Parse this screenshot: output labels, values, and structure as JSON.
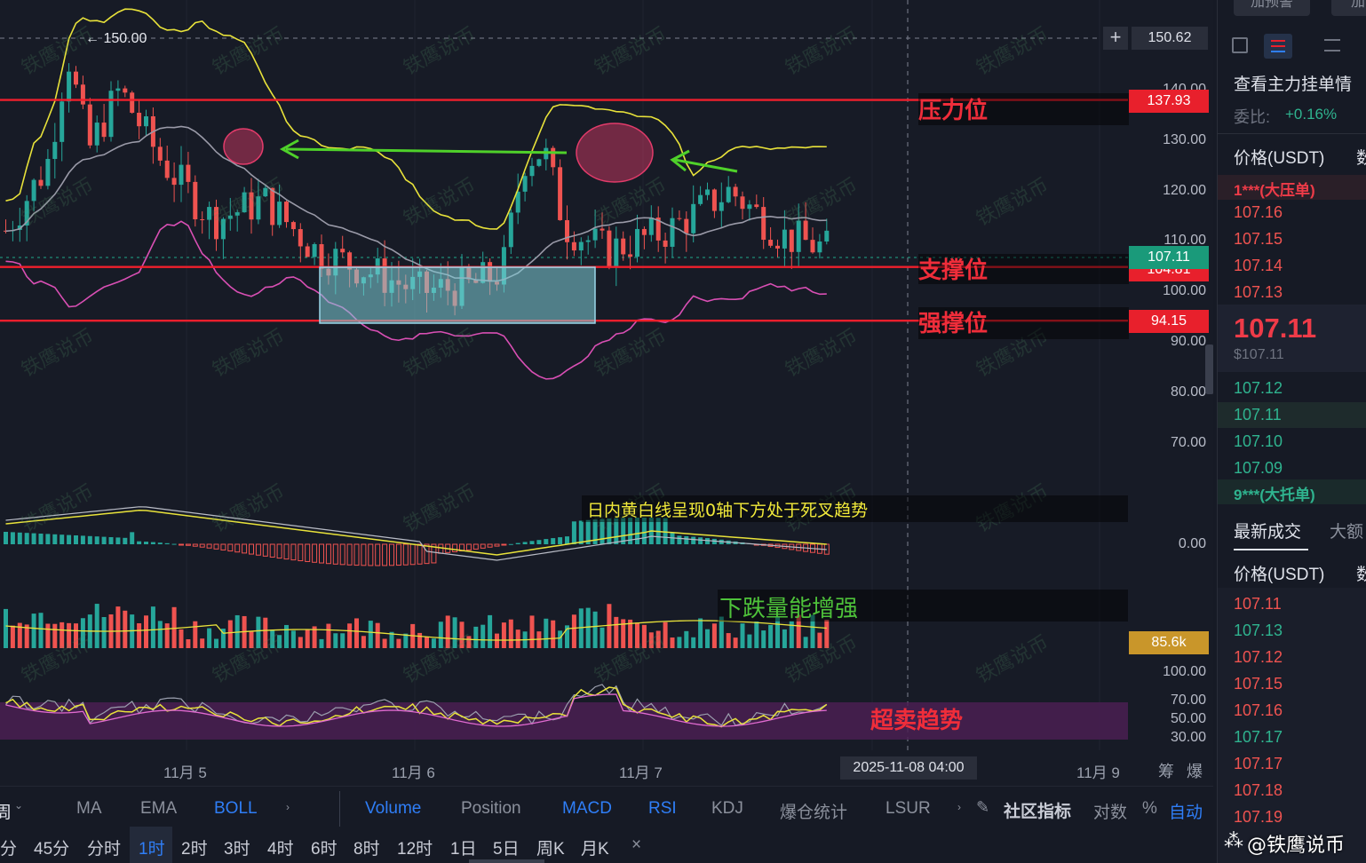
{
  "price_axis": {
    "ticks": [
      "140.00",
      "130.00",
      "120.00",
      "110.00",
      "100.00",
      "90.00",
      "80.00",
      "70.00"
    ],
    "crosshair_price": "150.62",
    "last_price": "107.11",
    "hidden_behind_tag": "104.81",
    "macd_zero": "0.00",
    "volume_tag": "85.6k",
    "rsi_ticks": [
      "100.00",
      "70.00",
      "50.00",
      "30.00"
    ]
  },
  "levels": {
    "resistance": {
      "label": "压力位",
      "price": "137.93",
      "color": "#f01f2c"
    },
    "support": {
      "label": "支撑位",
      "price": "104.81",
      "color": "#f01f2c"
    },
    "strong_support": {
      "label": "强撑位",
      "price": "94.15",
      "color": "#f01f2c"
    }
  },
  "annotations": {
    "high_marker": "← 150.00",
    "macd_note": "日内黄白线呈现0轴下方处于死叉趋势",
    "volume_note": "下跌量能增强",
    "rsi_note": "超卖趋势"
  },
  "time_axis": {
    "labels": [
      "11月 5",
      "11月 6",
      "11月 7",
      "11月 9"
    ],
    "current": "2025-11-08 04:00",
    "right_buttons": [
      "筹",
      "爆"
    ]
  },
  "toolbar_indicators": {
    "first": "周",
    "items": [
      "MA",
      "EMA",
      "BOLL",
      "Volume",
      "Position",
      "MACD",
      "RSI",
      "KDJ",
      "爆仓统计",
      "LSUR"
    ],
    "active": [
      "BOLL",
      "Volume",
      "MACD",
      "RSI"
    ],
    "community": "社区指标",
    "log": "对数",
    "percent": "%",
    "auto": "自动"
  },
  "toolbar_intervals": {
    "items": [
      "分",
      "45分",
      "分时",
      "1时",
      "2时",
      "3时",
      "4时",
      "6时",
      "8时",
      "12时",
      "1日",
      "5日",
      "周K",
      "月K",
      "×"
    ],
    "active": "1时"
  },
  "orderbook": {
    "top_buttons": [
      "加预警",
      "加"
    ],
    "title": "查看主力挂单情",
    "ratio_label": "委比:",
    "ratio_value": "+0.16%",
    "col_price": "价格(USDT)",
    "col_qty": "数",
    "big_ask": "1***(大压单)",
    "asks": [
      "107.16",
      "107.15",
      "107.14",
      "107.13"
    ],
    "mid_price": "107.11",
    "mid_usd": "$107.11",
    "bids": [
      "107.12",
      "107.11",
      "107.10",
      "107.09"
    ],
    "big_bid": "9***(大托单)",
    "trades_tab": "最新成交",
    "trades_tab2": "大额",
    "trades_col_price": "价格(USDT)",
    "trades_col_qty": "数",
    "trades": [
      {
        "price": "107.11",
        "side": "sell"
      },
      {
        "price": "107.13",
        "side": "buy"
      },
      {
        "price": "107.12",
        "side": "sell"
      },
      {
        "price": "107.15",
        "side": "sell"
      },
      {
        "price": "107.16",
        "side": "sell"
      },
      {
        "price": "107.17",
        "side": "buy"
      },
      {
        "price": "107.17",
        "side": "sell"
      },
      {
        "price": "107.18",
        "side": "sell"
      },
      {
        "price": "107.19",
        "side": "sell"
      }
    ]
  },
  "watermark": "@铁鹰说币",
  "colors": {
    "up": "#26a69a",
    "down": "#ef5350",
    "accent": "#2f7ef7",
    "level": "#f01f2c",
    "boll_upper": "#e8e23a",
    "boll_mid": "#9a9aa8",
    "boll_lower": "#d94fb4"
  }
}
